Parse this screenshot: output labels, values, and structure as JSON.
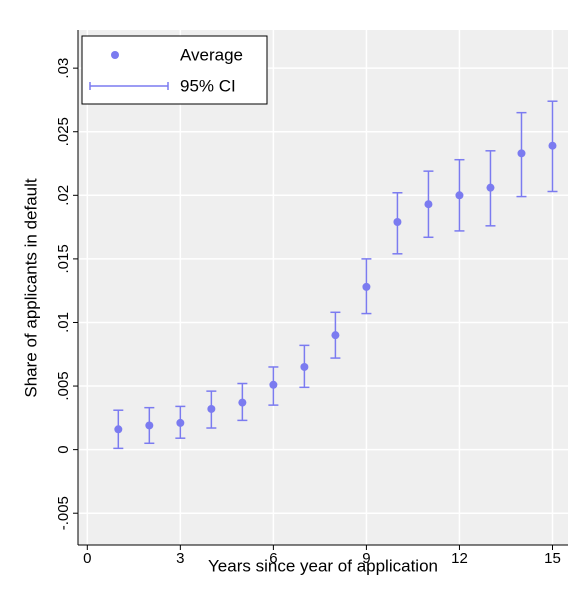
{
  "chart_data": {
    "type": "scatter",
    "x_label": "Years since year of application",
    "y_label": "Share of applicants in default",
    "x": [
      1,
      2,
      3,
      4,
      5,
      6,
      7,
      8,
      9,
      10,
      11,
      12,
      13,
      14,
      15
    ],
    "series": [
      {
        "name": "Average",
        "color": "#7b7bf0",
        "values": [
          0.0016,
          0.0019,
          0.0021,
          0.0032,
          0.0037,
          0.0051,
          0.0065,
          0.009,
          0.0128,
          0.0179,
          0.0193,
          0.02,
          0.0206,
          0.0233,
          0.0239
        ],
        "lower": [
          0.0001,
          0.0005,
          0.0009,
          0.0017,
          0.0023,
          0.0035,
          0.0049,
          0.0072,
          0.0107,
          0.0154,
          0.0167,
          0.0172,
          0.0176,
          0.0199,
          0.0203
        ],
        "upper": [
          0.0031,
          0.0033,
          0.0034,
          0.0046,
          0.0052,
          0.0065,
          0.0082,
          0.0108,
          0.015,
          0.0202,
          0.0219,
          0.0228,
          0.0235,
          0.0265,
          0.0274
        ],
        "error_bar_name": "95% CI"
      }
    ],
    "xlim": [
      -0.3,
      15.5
    ],
    "xticks": [
      0,
      3,
      6,
      9,
      12,
      15
    ],
    "ylim": [
      -0.0075,
      0.033
    ],
    "yticks": [
      {
        "value": -0.005,
        "label": "-.005"
      },
      0,
      {
        "value": 0.005,
        "label": ".005"
      },
      {
        "value": 0.01,
        "label": ".01"
      },
      {
        "value": 0.015,
        "label": ".015"
      },
      {
        "value": 0.02,
        "label": ".02"
      },
      {
        "value": 0.025,
        "label": ".025"
      },
      {
        "value": 0.03,
        "label": ".03"
      }
    ],
    "grid": true,
    "legend": "upper left"
  }
}
